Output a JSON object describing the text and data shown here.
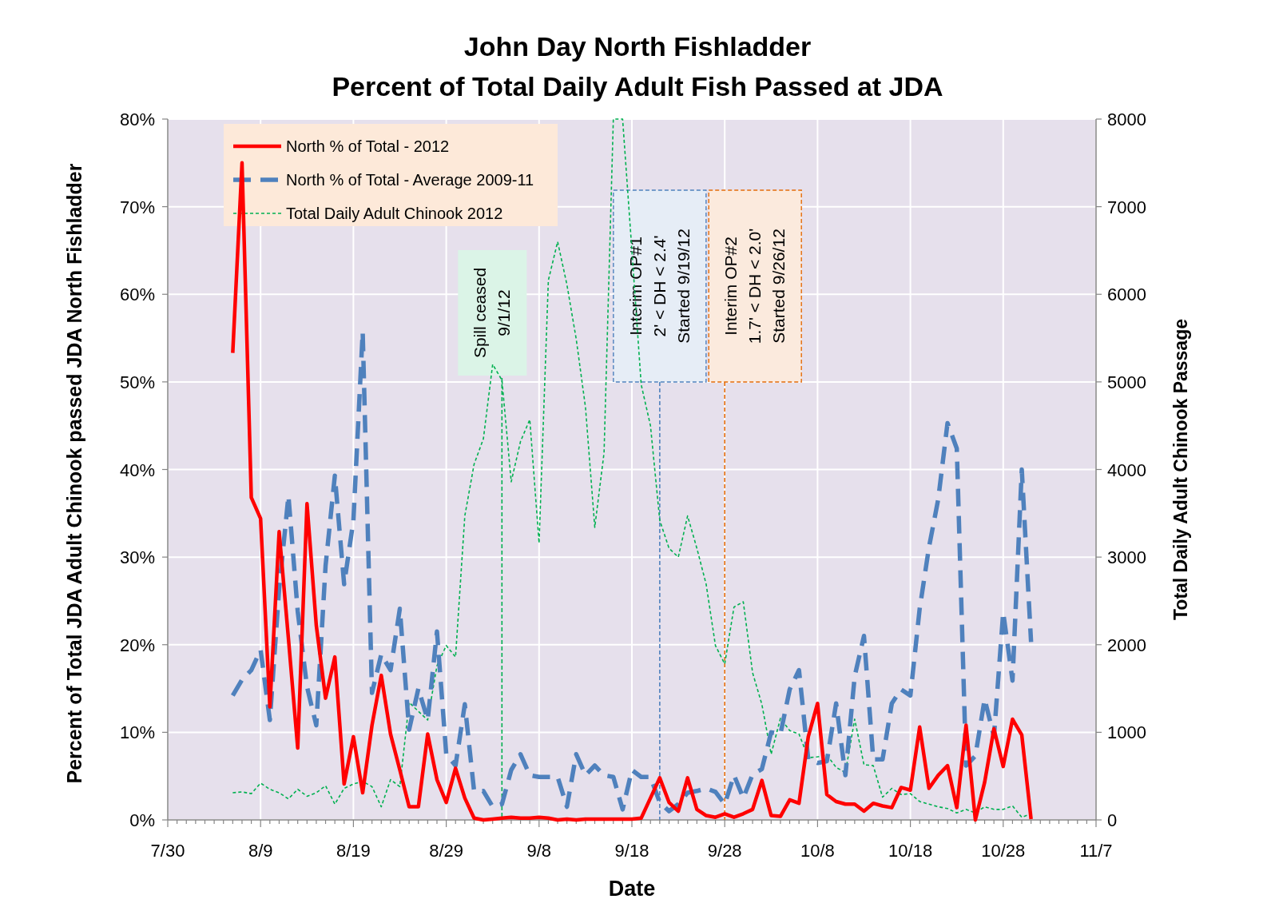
{
  "chart_data": {
    "type": "line",
    "title": "John Day North Fishladder",
    "subtitle": "Percent of Total Daily Adult Fish Passed at JDA",
    "xlabel": "Date",
    "ylabel": "Percent of Total JDA Adult Chinook passed JDA North Fishladder",
    "y2label": "Total Daily Adult Chinook Passage",
    "x": [
      "2012-08-06",
      "2012-08-07",
      "2012-08-08",
      "2012-08-09",
      "2012-08-10",
      "2012-08-11",
      "2012-08-12",
      "2012-08-13",
      "2012-08-14",
      "2012-08-15",
      "2012-08-16",
      "2012-08-17",
      "2012-08-18",
      "2012-08-19",
      "2012-08-20",
      "2012-08-21",
      "2012-08-22",
      "2012-08-23",
      "2012-08-24",
      "2012-08-25",
      "2012-08-26",
      "2012-08-27",
      "2012-08-28",
      "2012-08-29",
      "2012-08-30",
      "2012-08-31",
      "2012-09-01",
      "2012-09-02",
      "2012-09-03",
      "2012-09-04",
      "2012-09-05",
      "2012-09-06",
      "2012-09-07",
      "2012-09-08",
      "2012-09-09",
      "2012-09-10",
      "2012-09-11",
      "2012-09-12",
      "2012-09-13",
      "2012-09-14",
      "2012-09-15",
      "2012-09-16",
      "2012-09-17",
      "2012-09-18",
      "2012-09-19",
      "2012-09-20",
      "2012-09-21",
      "2012-09-22",
      "2012-09-23",
      "2012-09-24",
      "2012-09-25",
      "2012-09-26",
      "2012-09-27",
      "2012-09-28",
      "2012-09-29",
      "2012-09-30",
      "2012-10-01",
      "2012-10-02",
      "2012-10-03",
      "2012-10-04",
      "2012-10-05",
      "2012-10-06",
      "2012-10-07",
      "2012-10-08",
      "2012-10-09",
      "2012-10-10",
      "2012-10-11",
      "2012-10-12",
      "2012-10-13",
      "2012-10-14",
      "2012-10-15",
      "2012-10-16",
      "2012-10-17",
      "2012-10-18",
      "2012-10-19",
      "2012-10-20",
      "2012-10-21",
      "2012-10-22",
      "2012-10-23",
      "2012-10-24",
      "2012-10-25",
      "2012-10-26",
      "2012-10-27",
      "2012-10-28",
      "2012-10-29",
      "2012-10-30",
      "2012-10-31"
    ],
    "series": [
      {
        "name": "North % of Total  - 2012",
        "color": "#ff0000",
        "line_style": "solid",
        "values": [
          53.3,
          75,
          36.8,
          34.4,
          12.9,
          32.9,
          20.7,
          8.2,
          36.1,
          22.2,
          13.9,
          18.6,
          4.1,
          9.5,
          3.1,
          10.8,
          16.5,
          9.8,
          5.7,
          1.5,
          1.5,
          9.8,
          4.6,
          2.0,
          5.9,
          2.5,
          0.2,
          0,
          0.1,
          0.2,
          0.3,
          0.2,
          0.2,
          0.3,
          0.2,
          0,
          0.1,
          0,
          0.1,
          0.1,
          0.1,
          0.1,
          0.1,
          0.1,
          0.2,
          2.5,
          4.8,
          2.0,
          1.0,
          4.8,
          1.2,
          0.5,
          0.3,
          0.7,
          0.3,
          0.7,
          1.2,
          4.5,
          0.5,
          0.4,
          2.3,
          1.9,
          9.5,
          13.3,
          2.9,
          2.1,
          1.8,
          1.8,
          1.0,
          1.9,
          1.6,
          1.4,
          3.7,
          3.4,
          10.6,
          3.6,
          5.1,
          6.2,
          1.4,
          10.8,
          0,
          4.3,
          10.4,
          6.1,
          11.5,
          9.7,
          0.1
        ]
      },
      {
        "name": "North % of Total  - Average 2009-11",
        "color": "#4f81bd",
        "line_style": "dashed",
        "values": [
          14.2,
          16,
          17.1,
          19.4,
          11.4,
          26.4,
          37.0,
          23.8,
          15.2,
          10.8,
          29,
          39.3,
          26.9,
          34.2,
          55.7,
          14.5,
          18.9,
          17.1,
          24.1,
          10.3,
          15.0,
          11.4,
          21.5,
          7.5,
          6.2,
          13.2,
          3.3,
          3.3,
          1.5,
          1.8,
          5.7,
          7.5,
          5.1,
          4.9,
          4.9,
          4.9,
          1.5,
          7.5,
          5.1,
          6.2,
          5.1,
          4.9,
          1.2,
          5.7,
          4.9,
          4.9,
          2.0,
          1.0,
          1.8,
          3.1,
          3.3,
          3.6,
          3.2,
          1.8,
          5.1,
          2.5,
          5.2,
          5.8,
          10.0,
          9.8,
          14.9,
          17.1,
          6.9,
          6.5,
          6.7,
          13.3,
          5.1,
          16.4,
          21.0,
          6.9,
          6.9,
          13.3,
          14.9,
          14.2,
          24.1,
          31.1,
          36.6,
          45.3,
          42.4,
          6.2,
          7.3,
          13.8,
          9.5,
          23.7,
          15.9,
          40.0,
          20.3
        ]
      },
      {
        "name": "Total Daily Adult Chinook 2012",
        "color": "#00b050",
        "line_style": "dotted",
        "axis": "y2",
        "values": [
          310,
          320,
          300,
          420,
          350,
          310,
          240,
          350,
          270,
          310,
          390,
          180,
          360,
          410,
          440,
          380,
          150,
          460,
          380,
          1340,
          1240,
          1140,
          1760,
          1990,
          1860,
          3470,
          4060,
          4350,
          5200,
          5020,
          3860,
          4320,
          4570,
          3160,
          6160,
          6600,
          6110,
          5490,
          4710,
          3340,
          4190,
          8000,
          8000,
          6500,
          4970,
          4500,
          3420,
          3100,
          3000,
          3470,
          3100,
          2690,
          1990,
          1780,
          2430,
          2490,
          1680,
          1320,
          750,
          1160,
          1020,
          980,
          710,
          720,
          740,
          600,
          540,
          1150,
          630,
          620,
          260,
          360,
          290,
          300,
          210,
          180,
          150,
          130,
          80,
          120,
          80,
          150,
          120,
          120,
          160,
          30,
          70
        ]
      }
    ],
    "xlim": [
      "2012-07-30",
      "2012-11-07"
    ],
    "xticks": [
      {
        "value": "2012-07-30",
        "label": "7/30"
      },
      {
        "value": "2012-08-09",
        "label": "8/9"
      },
      {
        "value": "2012-08-19",
        "label": "8/19"
      },
      {
        "value": "2012-08-29",
        "label": "8/29"
      },
      {
        "value": "2012-09-08",
        "label": "9/8"
      },
      {
        "value": "2012-09-18",
        "label": "9/18"
      },
      {
        "value": "2012-09-28",
        "label": "9/28"
      },
      {
        "value": "2012-10-08",
        "label": "10/8"
      },
      {
        "value": "2012-10-18",
        "label": "10/18"
      },
      {
        "value": "2012-10-28",
        "label": "10/28"
      },
      {
        "value": "2012-11-07",
        "label": "11/7"
      }
    ],
    "ylim": [
      0,
      80
    ],
    "yticks": [
      {
        "value": 0,
        "label": "0%"
      },
      {
        "value": 10,
        "label": "10%"
      },
      {
        "value": 20,
        "label": "20%"
      },
      {
        "value": 30,
        "label": "30%"
      },
      {
        "value": 40,
        "label": "40%"
      },
      {
        "value": 50,
        "label": "50%"
      },
      {
        "value": 60,
        "label": "60%"
      },
      {
        "value": 70,
        "label": "70%"
      },
      {
        "value": 80,
        "label": "80%"
      }
    ],
    "y2lim": [
      0,
      8000
    ],
    "y2ticks": [
      0,
      1000,
      2000,
      3000,
      4000,
      5000,
      6000,
      7000,
      8000
    ],
    "ref_lines": [
      {
        "axis": "x",
        "value": "2012-09-04",
        "label": "Spill ceased\n9/1/12",
        "color": "#00b050",
        "line_style": "dashed"
      },
      {
        "axis": "x",
        "value": "2012-09-21",
        "label": "Interim OP#1\n2' < DH < 2.4'\nStarted 9/19/12",
        "color": "#4f81bd",
        "line_style": "dashed"
      },
      {
        "axis": "x",
        "value": "2012-09-28",
        "label": "Interim OP#2\n1.7' < DH < 2.0'\nStarted  9/26/12",
        "color": "#e46c0a",
        "line_style": "dashed"
      }
    ],
    "grid": true,
    "legend": "top left"
  }
}
